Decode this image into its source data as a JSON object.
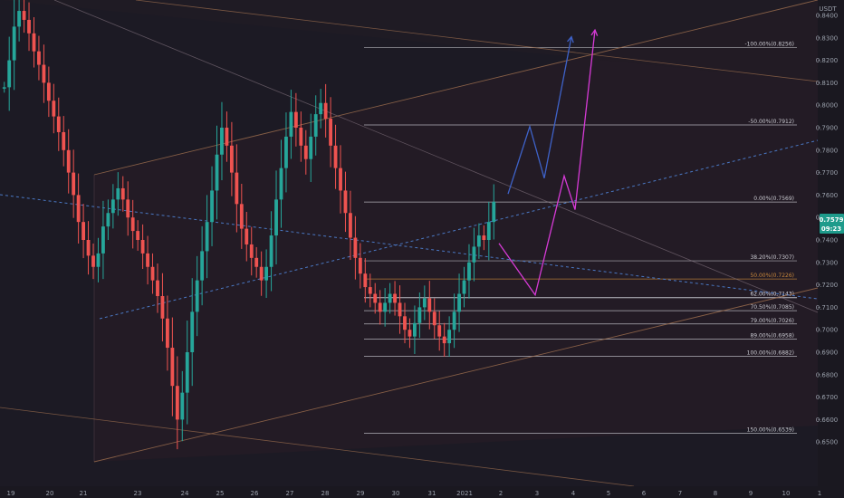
{
  "currency": "USDT",
  "price_badge": {
    "price": "0.7579",
    "countdown": "09:23"
  },
  "colors": {
    "background": "#1c1a24",
    "channel_fill": "#2a1e26",
    "candle_up": "#26a69a",
    "candle_down": "#ef5350",
    "channel_line": "#a0704f",
    "trend_dotted": "#4a78c4",
    "fib_line": "#c9c9d0",
    "fib_50": "#c8873a",
    "fib_62": "#d9d9e2",
    "path_blue": "#3e62c8",
    "path_magenta": "#d63ad6",
    "badge": "#1e9b8b",
    "axis_text": "#9aa0ab"
  },
  "chart_data": {
    "type": "candlestick",
    "symbol": "USDT",
    "ylim": [
      0.644,
      0.852
    ],
    "y_ticks": [
      "0.8400",
      "0.8300",
      "0.8200",
      "0.8100",
      "0.8000",
      "0.7900",
      "0.7800",
      "0.7700",
      "0.7600",
      "0.7500",
      "0.7400",
      "0.7300",
      "0.7200",
      "0.7100",
      "0.7000",
      "0.6900",
      "0.6800",
      "0.6700",
      "0.6600",
      "0.6500"
    ],
    "x_ticks": [
      "19",
      "20",
      "21",
      "23",
      "24",
      "25",
      "26",
      "27",
      "28",
      "29",
      "30",
      "31",
      "2021",
      "2",
      "3",
      "4",
      "5",
      "6",
      "7",
      "8",
      "9",
      "10",
      "1"
    ],
    "last_price": 0.7579,
    "fib_levels": [
      {
        "label": "-100.00%(0.8256)",
        "value": 0.8256
      },
      {
        "label": "-50.00%(0.7912)",
        "value": 0.7912
      },
      {
        "label": "0.00%(0.7569)",
        "value": 0.7569
      },
      {
        "label": "38.20%(0.7307)",
        "value": 0.7307
      },
      {
        "label": "50.00%(0.7226)",
        "value": 0.7226
      },
      {
        "label": "62.00%(0.7143)",
        "value": 0.7143
      },
      {
        "label": "70.50%(0.7085)",
        "value": 0.7085
      },
      {
        "label": "79.00%(0.7026)",
        "value": 0.7026
      },
      {
        "label": "89.00%(0.6958)",
        "value": 0.6958
      },
      {
        "label": "100.00%(0.6882)",
        "value": 0.6882
      },
      {
        "label": "150.00%(0.6539)",
        "value": 0.6539
      }
    ],
    "price_path": [
      0.808,
      0.82,
      0.835,
      0.842,
      0.838,
      0.832,
      0.824,
      0.818,
      0.81,
      0.802,
      0.795,
      0.788,
      0.78,
      0.77,
      0.76,
      0.748,
      0.74,
      0.733,
      0.728,
      0.734,
      0.746,
      0.752,
      0.758,
      0.763,
      0.758,
      0.75,
      0.744,
      0.74,
      0.734,
      0.728,
      0.722,
      0.715,
      0.705,
      0.692,
      0.675,
      0.66,
      0.672,
      0.69,
      0.708,
      0.722,
      0.735,
      0.748,
      0.762,
      0.778,
      0.79,
      0.782,
      0.77,
      0.756,
      0.745,
      0.738,
      0.732,
      0.728,
      0.722,
      0.728,
      0.742,
      0.758,
      0.772,
      0.786,
      0.797,
      0.79,
      0.782,
      0.776,
      0.786,
      0.796,
      0.801,
      0.794,
      0.782,
      0.772,
      0.762,
      0.752,
      0.741,
      0.732,
      0.725,
      0.719,
      0.716,
      0.712,
      0.708,
      0.712,
      0.716,
      0.712,
      0.706,
      0.7,
      0.697,
      0.703,
      0.71,
      0.714,
      0.708,
      0.702,
      0.697,
      0.694,
      0.7,
      0.708,
      0.716,
      0.722,
      0.73,
      0.737,
      0.742,
      0.74,
      0.748,
      0.757
    ],
    "projection_blue": [
      [
        1.2,
        0.7605
      ],
      [
        1.8,
        0.7905
      ],
      [
        2.2,
        0.7675
      ],
      [
        2.95,
        0.8305
      ]
    ],
    "projection_magenta": [
      [
        0.95,
        0.7385
      ],
      [
        1.95,
        0.7155
      ],
      [
        2.75,
        0.7685
      ],
      [
        3.05,
        0.7535
      ],
      [
        3.6,
        0.8335
      ]
    ]
  }
}
